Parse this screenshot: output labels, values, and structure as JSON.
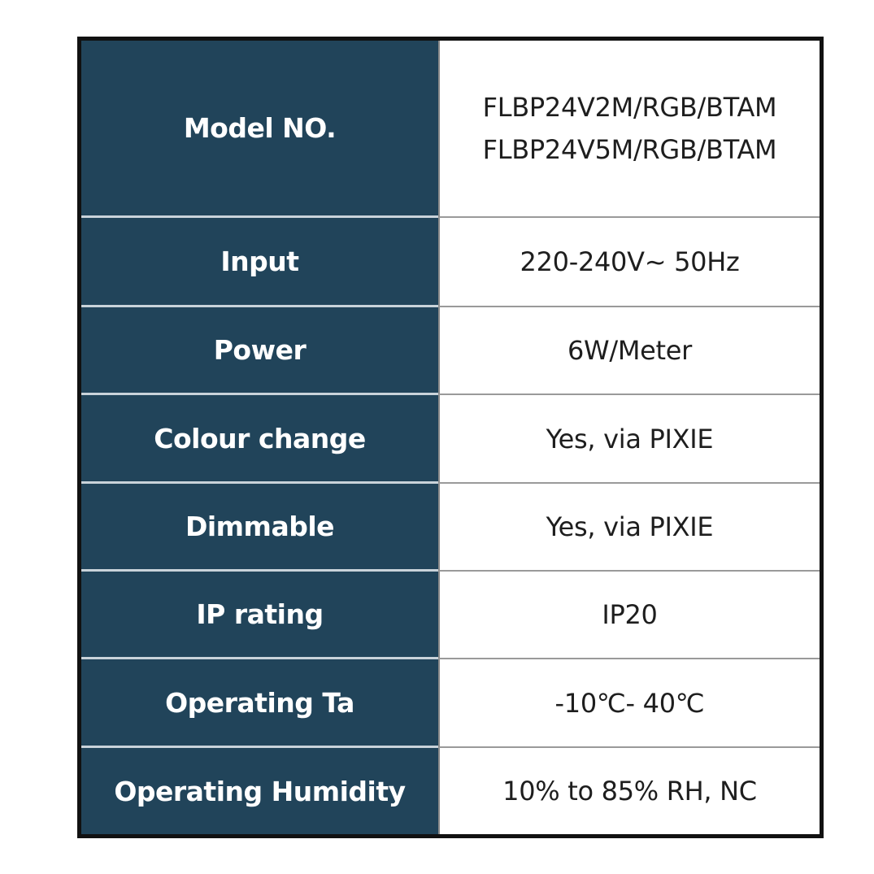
{
  "rows": [
    {
      "label": "Model NO.",
      "values": [
        "FLBP24V2M/RGB/BTAM",
        "FLBP24V5M/RGB/BTAM"
      ]
    },
    {
      "label": "Input",
      "values": [
        "220-240V~ 50Hz"
      ]
    },
    {
      "label": "Power",
      "values": [
        "6W/Meter"
      ]
    },
    {
      "label": "Colour change",
      "values": [
        "Yes, via PIXIE"
      ]
    },
    {
      "label": "Dimmable",
      "values": [
        "Yes, via PIXIE"
      ]
    },
    {
      "label": "IP rating",
      "values": [
        "IP20"
      ]
    },
    {
      "label": "Operating Ta",
      "values": [
        "-10℃- 40℃"
      ]
    },
    {
      "label": "Operating Humidity",
      "values": [
        "10% to 85% RH, NC"
      ]
    }
  ],
  "colors": {
    "label_bg": "#21445a",
    "label_text": "#ffffff",
    "border": "#111111"
  }
}
